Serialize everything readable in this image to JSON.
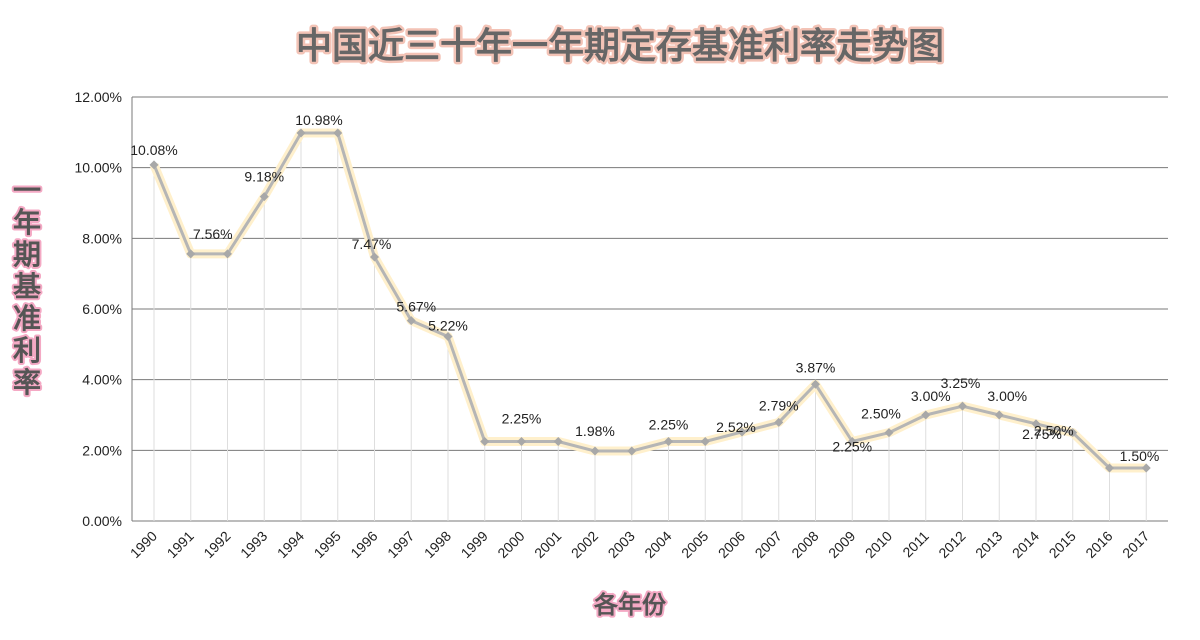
{
  "chart_data": {
    "type": "line",
    "title": "中国近三十年一年期定存基准利率走势图",
    "ylabel": "一年期基准利率",
    "xlabel": "各年份",
    "ylim": [
      0,
      12
    ],
    "ytick_labels": [
      "0.00%",
      "2.00%",
      "4.00%",
      "6.00%",
      "8.00%",
      "10.00%",
      "12.00%"
    ],
    "grid": true,
    "categories": [
      "1990",
      "1991",
      "1992",
      "1993",
      "1994",
      "1995",
      "1996",
      "1997",
      "1998",
      "1999",
      "2000",
      "2001",
      "2002",
      "2003",
      "2004",
      "2005",
      "2006",
      "2007",
      "2008",
      "2009",
      "2010",
      "2011",
      "2012",
      "2013",
      "2014",
      "2015",
      "2016",
      "2017"
    ],
    "values": [
      10.08,
      7.56,
      7.56,
      9.18,
      10.98,
      10.98,
      7.47,
      5.67,
      5.22,
      2.25,
      2.25,
      2.25,
      1.98,
      1.98,
      2.25,
      2.25,
      2.52,
      2.79,
      3.87,
      2.25,
      2.5,
      3.0,
      3.25,
      3.0,
      2.75,
      2.5,
      1.5,
      1.5
    ],
    "data_labels": [
      {
        "index": 0,
        "text": "10.08%"
      },
      {
        "index": 1,
        "text": "7.56%"
      },
      {
        "index": 3,
        "text": "9.18%"
      },
      {
        "index": 4,
        "text": "10.98%"
      },
      {
        "index": 6,
        "text": "7.47%"
      },
      {
        "index": 7,
        "text": "5.67%"
      },
      {
        "index": 8,
        "text": "5.22%"
      },
      {
        "index": 10,
        "text": "2.25%"
      },
      {
        "index": 12,
        "text": "1.98%"
      },
      {
        "index": 14,
        "text": "2.25%"
      },
      {
        "index": 16,
        "text": "2.52%"
      },
      {
        "index": 17,
        "text": "2.79%"
      },
      {
        "index": 18,
        "text": "3.87%"
      },
      {
        "index": 19,
        "text": "2.25%"
      },
      {
        "index": 20,
        "text": "2.50%"
      },
      {
        "index": 21,
        "text": "3.00%"
      },
      {
        "index": 22,
        "text": "3.25%"
      },
      {
        "index": 23,
        "text": "3.00%"
      },
      {
        "index": 24,
        "text": "2.75%"
      },
      {
        "index": 25,
        "text": "2.50%"
      },
      {
        "index": 26,
        "text": "1.50%"
      }
    ],
    "colors": {
      "line": "#b5b5b5",
      "marker": "#a8a8a8",
      "grid": "#7a7a7a",
      "drop_line": "#dedede",
      "glow": "#fff0cc"
    }
  }
}
